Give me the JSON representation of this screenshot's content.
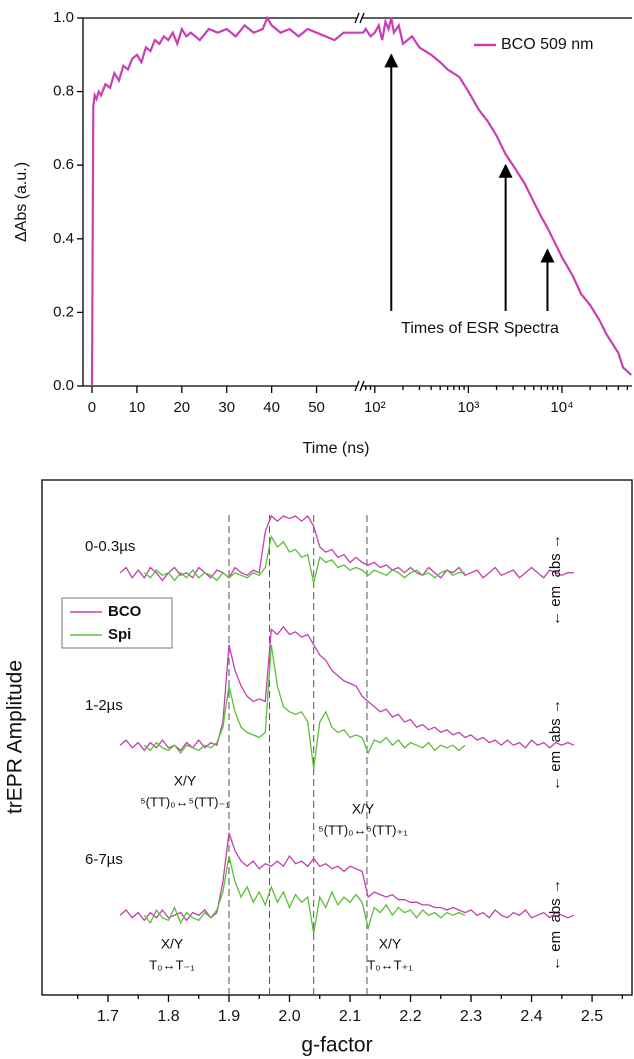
{
  "chart_data": [
    {
      "type": "line",
      "ylabel": "ΔAbs (a.u.)",
      "xlabel": "Time (ns)",
      "xlim": [
        -2,
        59
      ],
      "x2lim": [
        73,
        56000
      ],
      "x2log": true,
      "ylim": [
        0,
        1
      ],
      "yticks": [
        {
          "value": 0,
          "label": "0.0"
        },
        {
          "value": 0.2,
          "label": "0.2"
        },
        {
          "value": 0.4,
          "label": "0.4"
        },
        {
          "value": 0.6,
          "label": "0.6"
        },
        {
          "value": 0.8,
          "label": "0.8"
        },
        {
          "value": 1,
          "label": "1.0"
        }
      ],
      "xticks": [
        0,
        10,
        20,
        30,
        40,
        50
      ],
      "x2ticks": [
        {
          "value": 100,
          "label": "10²"
        },
        {
          "value": 1000,
          "label": "10³"
        },
        {
          "value": 10000,
          "label": "10⁴"
        }
      ],
      "x2minorticks": [
        80,
        90,
        200,
        300,
        400,
        500,
        600,
        700,
        800,
        900,
        2000,
        3000,
        4000,
        5000,
        6000,
        7000,
        8000,
        9000,
        20000,
        30000,
        40000,
        50000
      ],
      "legend": "upper right",
      "series": [
        {
          "name": "BCO 509 nm",
          "color": "#c93fb3",
          "x": [
            0,
            0.3,
            0.6,
            1,
            1.5,
            2,
            3,
            4,
            5,
            6,
            7,
            8,
            9,
            10,
            11,
            12,
            13,
            14,
            15,
            16,
            17,
            18,
            19,
            20,
            21,
            22,
            24,
            26,
            28,
            30,
            32,
            34,
            36,
            38,
            39,
            40,
            42,
            44,
            46,
            48,
            50,
            52,
            54,
            56,
            58,
            75,
            80,
            90,
            100,
            110,
            120,
            130,
            140,
            150,
            160,
            180,
            200,
            250,
            300,
            400,
            500,
            600,
            800,
            1000,
            1300,
            1600,
            2000,
            2500,
            3000,
            4000,
            5000,
            6000,
            7000,
            8000,
            10000,
            13000,
            16000,
            20000,
            25000,
            30000,
            40000,
            45000,
            50000,
            55000
          ],
          "values": [
            0,
            0.76,
            0.79,
            0.78,
            0.8,
            0.79,
            0.82,
            0.81,
            0.85,
            0.83,
            0.87,
            0.86,
            0.89,
            0.9,
            0.88,
            0.92,
            0.91,
            0.94,
            0.93,
            0.95,
            0.94,
            0.96,
            0.93,
            0.97,
            0.95,
            0.96,
            0.94,
            0.97,
            0.96,
            0.97,
            0.95,
            0.98,
            0.96,
            0.97,
            1.0,
            0.98,
            0.96,
            0.97,
            0.95,
            0.97,
            0.96,
            0.95,
            0.94,
            0.96,
            0.96,
            0.96,
            0.97,
            0.95,
            0.96,
            0.98,
            0.94,
            0.99,
            0.97,
            1.0,
            0.96,
            0.98,
            0.93,
            0.95,
            0.92,
            0.9,
            0.88,
            0.86,
            0.84,
            0.8,
            0.75,
            0.72,
            0.68,
            0.63,
            0.6,
            0.55,
            0.5,
            0.46,
            0.43,
            0.4,
            0.35,
            0.3,
            0.25,
            0.22,
            0.18,
            0.14,
            0.09,
            0.05,
            0.04,
            0.03
          ]
        }
      ],
      "annotations": [
        {
          "text": "Times of ESR Spectra"
        }
      ],
      "arrows": [
        {
          "x": 150,
          "y": 0.9
        },
        {
          "x": 2500,
          "y": 0.6
        },
        {
          "x": 7000,
          "y": 0.37
        }
      ]
    },
    {
      "type": "line",
      "ylabel": "trEPR Amplitude",
      "xlabel": "g-factor",
      "xlim": [
        1.591,
        2.566
      ],
      "ylim": [
        0,
        100
      ],
      "xticks": [
        1.7,
        1.8,
        1.9,
        {
          "value": 2,
          "label": "2.0"
        },
        2.1,
        2.2,
        2.3,
        2.4,
        2.5
      ],
      "xminorticks": [
        1.65,
        1.75,
        1.85,
        1.95,
        2.05,
        2.15,
        2.25,
        2.35,
        2.45,
        2.55
      ],
      "legend": "upper left",
      "series": [
        {
          "name": "BCO",
          "color": "#c43fb0",
          "x": [
            1.72,
            1.73,
            1.74,
            1.75,
            1.76,
            1.77,
            1.78,
            1.79,
            1.8,
            1.81,
            1.82,
            1.83,
            1.84,
            1.85,
            1.86,
            1.87,
            1.88,
            1.89,
            1.9,
            1.91,
            1.92,
            1.93,
            1.94,
            1.95,
            1.96,
            1.97,
            1.98,
            1.99,
            2.0,
            2.01,
            2.02,
            2.03,
            2.04,
            2.05,
            2.06,
            2.07,
            2.08,
            2.09,
            2.1,
            2.11,
            2.12,
            2.13,
            2.14,
            2.15,
            2.16,
            2.17,
            2.18,
            2.19,
            2.2,
            2.21,
            2.22,
            2.23,
            2.24,
            2.25,
            2.26,
            2.27,
            2.28,
            2.29,
            2.3,
            2.31,
            2.32,
            2.33,
            2.34,
            2.35,
            2.36,
            2.37,
            2.38,
            2.39,
            2.4,
            2.41,
            2.42,
            2.43,
            2.44,
            2.45,
            2.46,
            2.47
          ],
          "traces": [
            [
              82,
              83,
              81,
              82.5,
              81,
              83,
              82,
              80.5,
              82,
              83,
              81.5,
              82,
              81,
              83,
              82,
              81,
              82.5,
              82,
              81,
              83,
              82,
              81.5,
              82.5,
              82,
              90,
              93,
              92,
              93,
              92.5,
              93,
              92,
              93,
              91,
              87,
              86,
              86.5,
              85,
              85.5,
              84,
              85,
              84,
              83.5,
              84,
              83,
              83.5,
              82.5,
              83,
              82,
              83,
              82,
              81.5,
              83,
              82,
              81,
              82.5,
              82,
              83,
              81.5,
              82,
              82.5,
              81,
              82,
              83,
              81.5,
              82,
              82.5,
              81,
              82,
              83,
              82,
              81,
              82.5,
              82,
              81.5,
              82,
              82
            ],
            [
              48.5,
              49.5,
              48,
              49,
              47.5,
              49,
              48,
              49.5,
              48,
              48.5,
              47.5,
              49,
              48,
              49.5,
              48,
              49,
              48.5,
              53,
              68,
              63,
              60,
              58,
              57,
              57.5,
              57,
              71,
              70,
              71.5,
              70,
              70.5,
              69.5,
              70,
              68,
              66,
              65,
              63,
              62,
              61,
              60.5,
              60,
              58,
              57,
              56,
              55,
              55.5,
              54,
              54.5,
              53,
              53.5,
              52,
              52.5,
              51.5,
              52,
              51,
              51.5,
              50.5,
              51,
              50,
              50.5,
              49.5,
              50,
              49,
              49.5,
              48.5,
              49.5,
              48.5,
              49,
              48,
              49.5,
              48.5,
              49,
              48,
              49,
              48.5,
              49,
              48.5
            ],
            [
              15.5,
              16.5,
              15,
              16,
              14.5,
              16,
              15,
              16.5,
              15,
              15.5,
              16,
              14.5,
              16,
              15.5,
              16.5,
              15,
              16,
              22,
              31.5,
              28,
              26,
              25,
              26,
              24.5,
              25.5,
              25,
              26,
              25,
              27,
              25.5,
              26,
              25,
              26.5,
              25,
              25.5,
              24.5,
              25,
              24,
              25,
              24.5,
              24,
              19,
              20,
              19.5,
              19,
              19.5,
              18.5,
              18.5,
              18,
              18,
              17.5,
              17.5,
              17,
              17,
              16.5,
              17,
              16.5,
              16,
              16.5,
              15.5,
              16,
              15,
              16.5,
              15.5,
              15,
              16,
              15.5,
              16.5,
              15,
              15.5,
              16,
              15,
              16,
              15.5,
              15,
              15.5
            ]
          ]
        },
        {
          "name": "Spi",
          "color": "#5cbf3a",
          "x": [
            1.76,
            1.77,
            1.78,
            1.79,
            1.8,
            1.81,
            1.82,
            1.83,
            1.84,
            1.85,
            1.86,
            1.87,
            1.88,
            1.89,
            1.9,
            1.91,
            1.92,
            1.93,
            1.94,
            1.95,
            1.96,
            1.97,
            1.98,
            1.99,
            2.0,
            2.01,
            2.02,
            2.03,
            2.04,
            2.05,
            2.06,
            2.07,
            2.08,
            2.09,
            2.1,
            2.11,
            2.12,
            2.13,
            2.14,
            2.15,
            2.16,
            2.17,
            2.18,
            2.19,
            2.2,
            2.21,
            2.22,
            2.23,
            2.24,
            2.25,
            2.26,
            2.27,
            2.28,
            2.29
          ],
          "traces": [
            [
              82,
              81,
              82.5,
              81.5,
              82,
              80.5,
              82,
              81,
              82.5,
              81,
              82,
              81.5,
              80.5,
              82,
              81,
              82,
              81.5,
              81,
              82,
              81.5,
              83,
              89,
              87,
              88,
              86,
              86.5,
              85,
              85.5,
              80,
              85,
              84,
              84.5,
              83,
              83.5,
              82.5,
              83,
              82.5,
              81.5,
              82.5,
              82,
              81.5,
              82.5,
              82,
              81,
              82,
              82.5,
              81.5,
              82,
              81,
              82,
              82.5,
              81.5,
              82,
              82
            ],
            [
              48.5,
              47.5,
              49,
              48,
              47.5,
              48.5,
              47,
              48.5,
              48,
              47.5,
              48.5,
              48,
              49,
              52,
              60,
              55,
              52,
              51,
              50.5,
              50,
              51,
              68,
              60,
              56,
              55,
              54.5,
              55,
              53,
              44,
              53,
              55,
              52,
              51,
              51.5,
              50,
              50.5,
              50,
              47,
              49.5,
              49,
              50,
              48.5,
              49.5,
              48,
              49,
              48.5,
              48,
              49,
              47.5,
              48.5,
              48,
              48.5,
              47.5,
              48.5
            ],
            [
              15.5,
              14,
              16.5,
              15,
              14.5,
              17,
              14,
              16,
              15,
              14.5,
              16,
              15,
              16.5,
              20,
              27,
              22,
              19,
              21,
              18,
              20,
              17.5,
              21,
              18,
              20,
              17,
              19.5,
              18,
              19,
              12,
              19,
              17,
              20,
              17.5,
              19,
              18,
              19.5,
              18,
              13,
              17,
              16,
              17.5,
              15.5,
              17,
              16,
              16.5,
              15,
              16.5,
              15.5,
              16,
              15,
              16,
              15.5,
              16,
              15.5
            ]
          ]
        }
      ],
      "trace_labels": [
        "0-0.3µs",
        "1-2µs",
        "6-7µs"
      ],
      "direction_labels": [
        "← em  abs →",
        "← em  abs →",
        "← em  abs →"
      ],
      "dashed_lines": [
        1.9,
        1.967,
        2.04,
        2.128
      ],
      "annotations": [
        {
          "text": "X/Y",
          "detail": "⁵(TT)₀↔⁵(TT)₋₁"
        },
        {
          "text": "X/Y",
          "detail": "⁵(TT)₀↔⁵(TT)₊₁"
        },
        {
          "text": "X/Y",
          "detail": "T₀↔T₋₁"
        },
        {
          "text": "X/Y",
          "detail": "T₀↔T₊₁"
        }
      ]
    }
  ]
}
